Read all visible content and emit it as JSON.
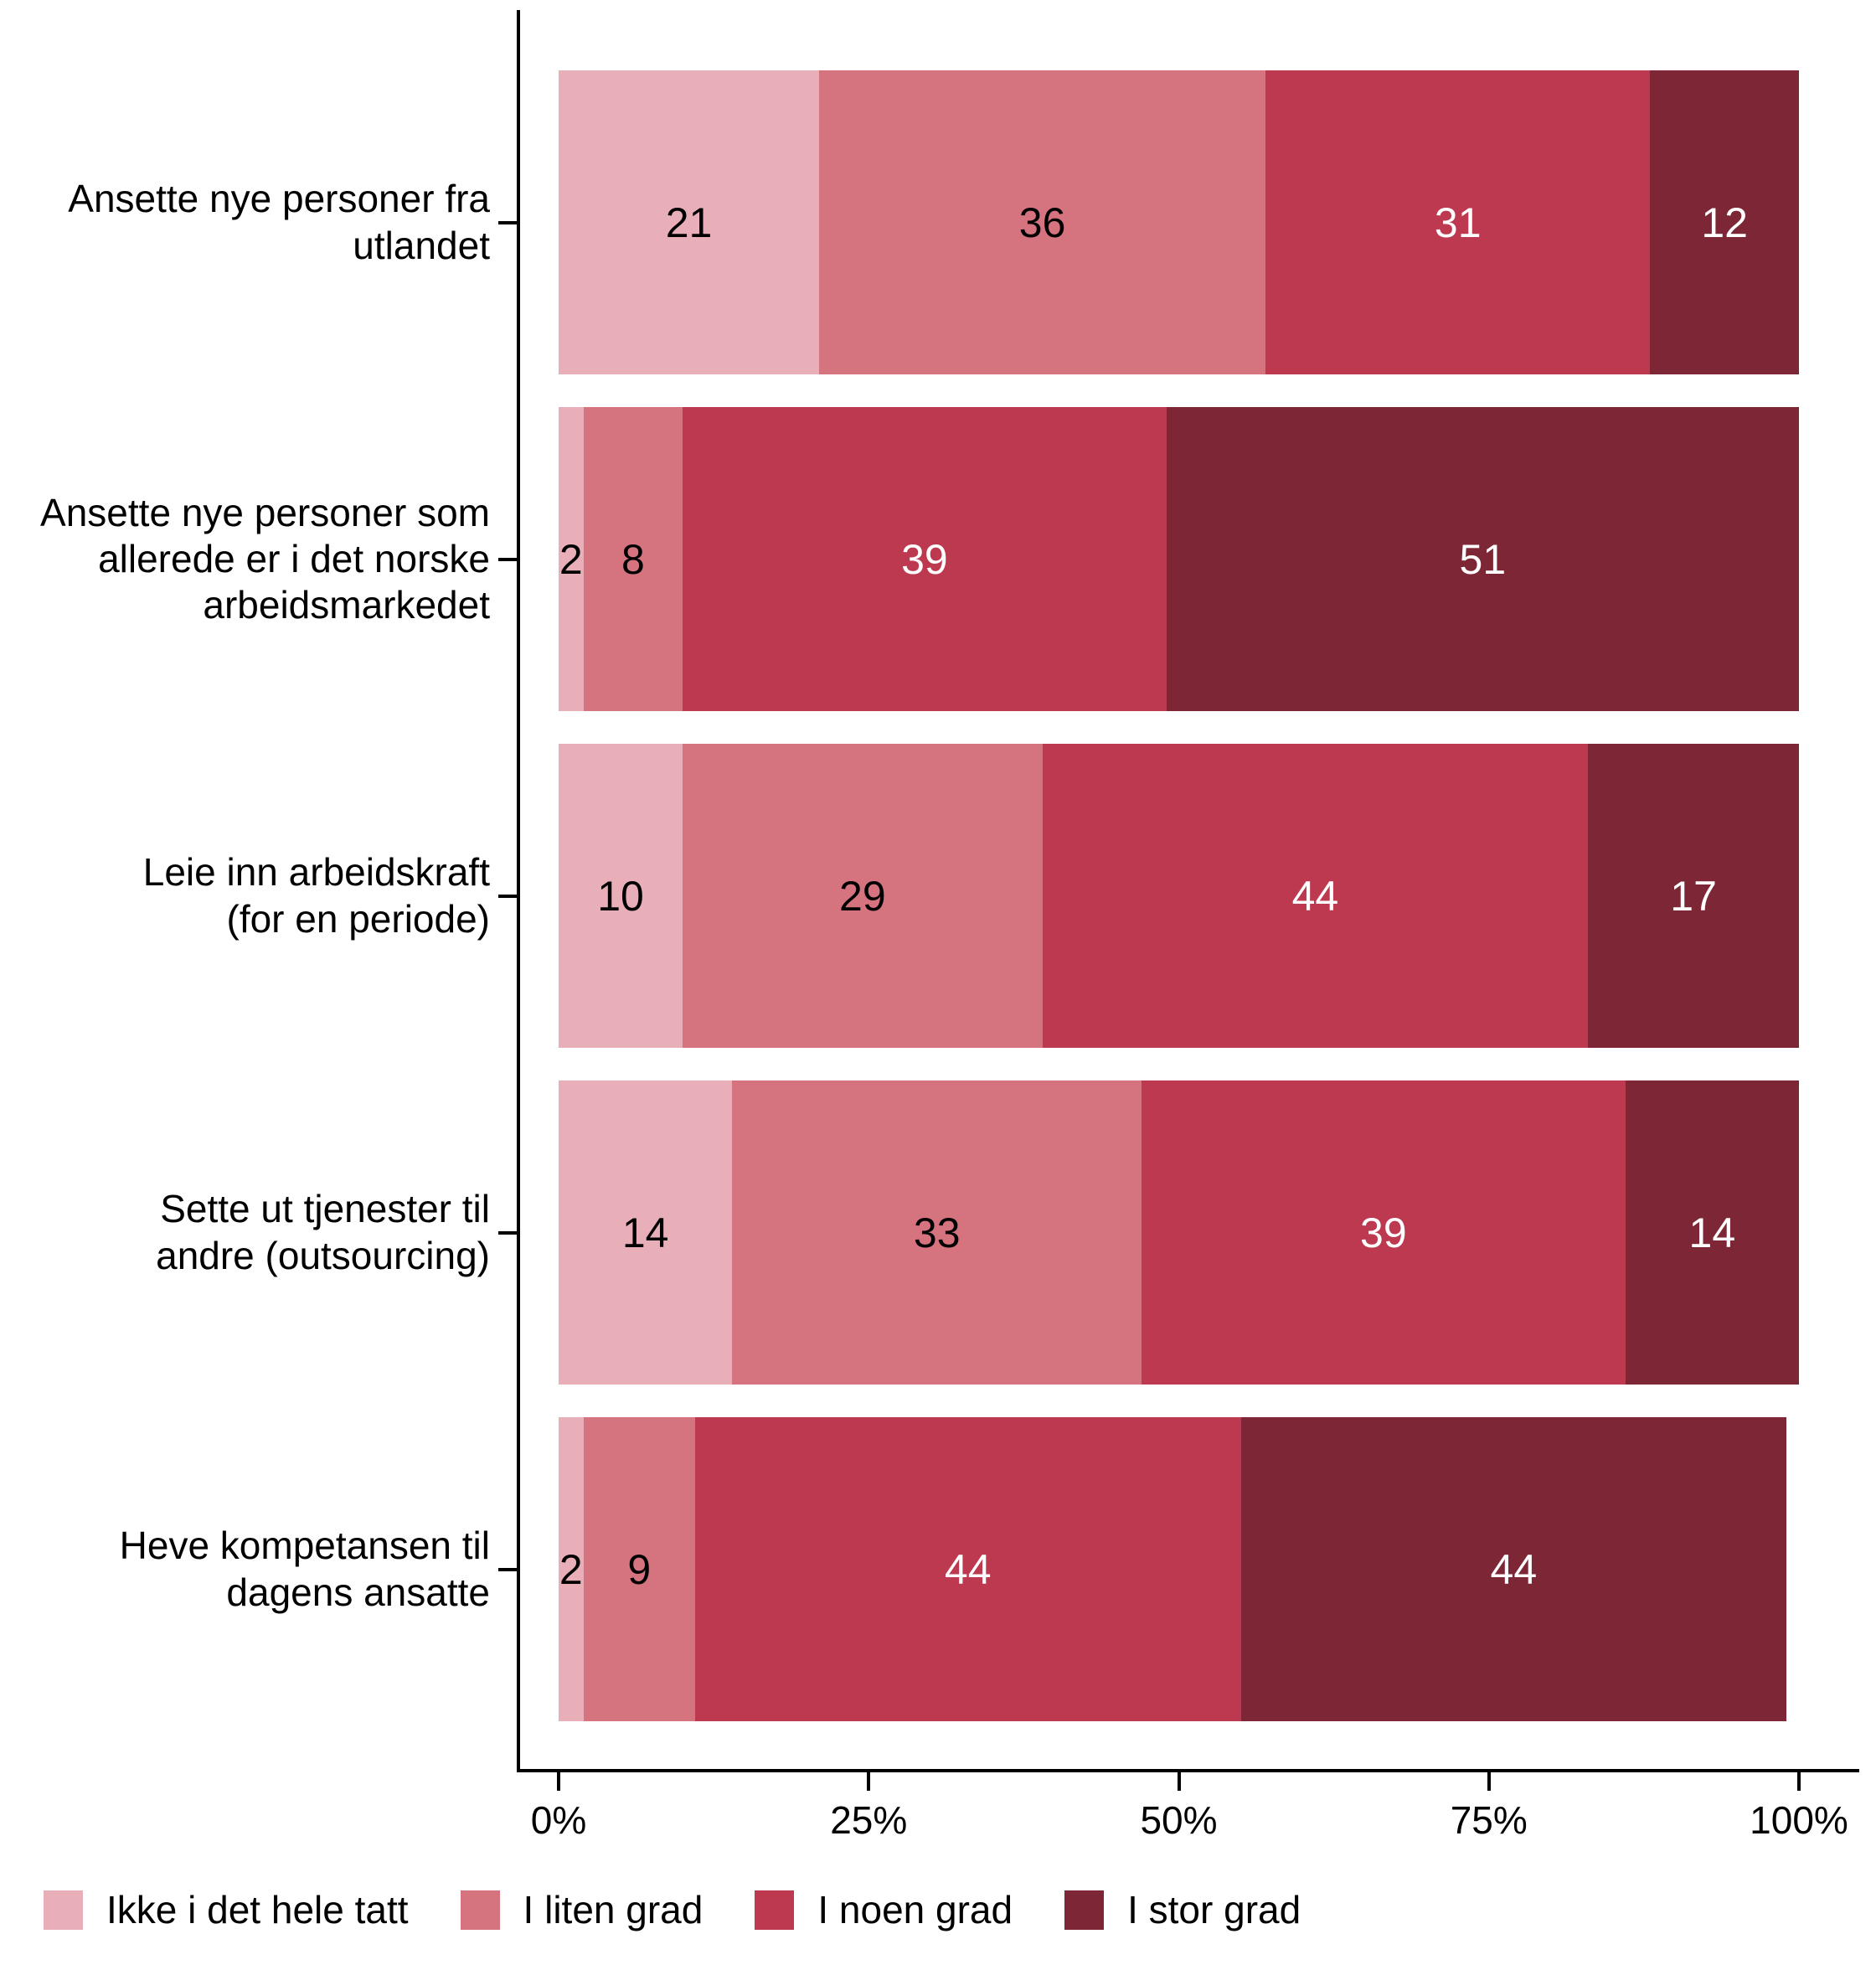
{
  "chart_data": {
    "type": "bar",
    "subtype": "horizontal_stacked_percent",
    "title": "",
    "xlabel": "",
    "ylabel": "",
    "xlim": [
      0,
      100
    ],
    "grid": false,
    "legend_position": "bottom-left",
    "categories": [
      "Ansette nye personer fra\nutlandet",
      "Ansette nye personer som\nallerede er i det norske\narbeidsmarkedet",
      "Leie inn arbeidskraft\n(for en periode)",
      "Sette ut tjenester til\nandre (outsourcing)",
      "Heve kompetansen til\ndagens ansatte"
    ],
    "series": [
      {
        "name": "Ikke i det hele tatt",
        "color": "#e8afb8",
        "label_color": "#000000",
        "values": [
          21,
          2,
          10,
          14,
          2
        ]
      },
      {
        "name": "I liten grad",
        "color": "#d5737f",
        "label_color": "#000000",
        "values": [
          36,
          8,
          29,
          33,
          9
        ]
      },
      {
        "name": "I noen grad",
        "color": "#bc394f",
        "label_color": "#ffffff",
        "values": [
          31,
          39,
          44,
          39,
          44
        ]
      },
      {
        "name": "I stor grad",
        "color": "#7d2636",
        "label_color": "#ffffff",
        "values": [
          12,
          51,
          17,
          14,
          44
        ]
      }
    ],
    "x_axis_ticks": [
      {
        "value": 0,
        "label": "0%"
      },
      {
        "value": 25,
        "label": "25%"
      },
      {
        "value": 50,
        "label": "50%"
      },
      {
        "value": 75,
        "label": "75%"
      },
      {
        "value": 100,
        "label": "100%"
      }
    ],
    "axis_color": "#000000",
    "background_color": "#ffffff"
  }
}
